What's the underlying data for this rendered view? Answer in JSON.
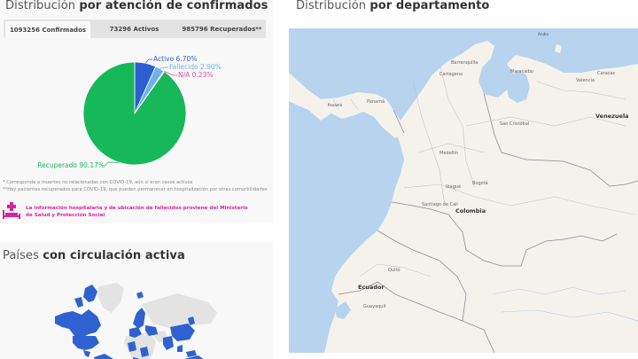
{
  "confirmados_panel": {
    "title_light": "Distribución",
    "title_bold": "por atención de confirmados",
    "tabs": [
      {
        "label": "1093256 Confirmados",
        "active": true
      },
      {
        "label": "73296 Activos",
        "active": false
      },
      {
        "label": "985796 Recuperados**",
        "active": false
      }
    ],
    "footnotes": [
      "* Corresponde a muertes no relacionadas con COVID-19, aún si eran casos activos",
      "**Hay pacientes recuperados para COVID-19, que pueden permanecer en hospitalización por otras comorbilidades"
    ],
    "info_icon": "hospital-bed-icon",
    "info_text": "La información hospitalaria y de ubicación de fallecidos proviene del Ministerio de Salud y Protección Social"
  },
  "chart_data": {
    "type": "pie",
    "title": "Distribución por atención de confirmados",
    "categories": [
      "Activo",
      "Fallecido",
      "N/A",
      "Recuperado"
    ],
    "values": [
      6.7,
      2.9,
      0.23,
      90.17
    ],
    "labels": [
      "Activo 6.70%",
      "Fallecido 2.90%",
      "N/A 0.23%",
      "Recuperado 90.17%"
    ],
    "colors": [
      "#2d5fd3",
      "#6cb4e8",
      "#e24f9d",
      "#16b85a"
    ],
    "unit": "%",
    "legend": "inline labels"
  },
  "paises_panel": {
    "title_light": "Países",
    "title_bold": "con circulación activa",
    "active_color": "#2f62d0",
    "inactive_color": "#e3e3e3"
  },
  "departamento_panel": {
    "title_light": "Distribución",
    "title_bold": "por departamento",
    "map_labels": {
      "aruba": "Aruba",
      "barranquilla": "Barranquilla",
      "cartagena": "Cartagena",
      "maracaibo": "Maracaibo",
      "caracas": "Caracas",
      "valencia": "Valencia",
      "venezuela": "Venezuela",
      "san_cristobal": "San Cristóbal",
      "panama_country": "Panamá",
      "panama_city": "Panamá",
      "medellin": "Medellín",
      "bogota": "Bogotá",
      "ibague": "Ibagué",
      "cali": "Santiago de Cali",
      "colombia": "Colombia",
      "quito": "Quito",
      "ecuador": "Ecuador",
      "guayaquil": "Guayaquil"
    }
  }
}
